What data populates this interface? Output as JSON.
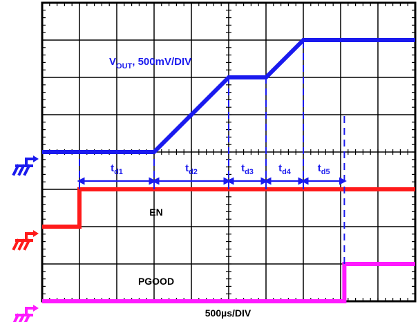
{
  "chart_data": {
    "type": "line",
    "time_scale": "500µs/DIV",
    "x_unit": "div",
    "y_unit": "div",
    "xlim": [
      0,
      10
    ],
    "ylim": [
      0,
      8
    ],
    "grid": true,
    "series": [
      {
        "name": "VOUT",
        "label_main": "V",
        "label_sub": "OUT",
        "label_rest": ", 500mV/DIV",
        "color": "#1a1aee",
        "points": [
          [
            0,
            4.0
          ],
          [
            3.0,
            4.0
          ],
          [
            5.0,
            6.0
          ],
          [
            6.0,
            6.0
          ],
          [
            7.0,
            7.0
          ],
          [
            10,
            7.0
          ]
        ]
      },
      {
        "name": "EN",
        "label": "EN",
        "color": "#ff1a1a",
        "points": [
          [
            0,
            2.0
          ],
          [
            1.0,
            2.0
          ],
          [
            1.0,
            3.0
          ],
          [
            10,
            3.0
          ]
        ]
      },
      {
        "name": "PGOOD",
        "label": "PGOOD",
        "color": "#ff1aff",
        "points": [
          [
            0,
            0.0
          ],
          [
            8.1,
            0.0
          ],
          [
            8.1,
            1.0
          ],
          [
            10,
            1.0
          ]
        ]
      }
    ],
    "markers": [
      {
        "x": 1.0,
        "from_y": 3.0,
        "to_y": 4.0
      },
      {
        "x": 3.0,
        "from_y": 3.0,
        "to_y": 4.0
      },
      {
        "x": 5.0,
        "from_y": 3.0,
        "to_y": 6.0
      },
      {
        "x": 6.0,
        "from_y": 3.0,
        "to_y": 6.0
      },
      {
        "x": 7.0,
        "from_y": 3.0,
        "to_y": 7.0
      },
      {
        "x": 8.1,
        "from_y": 1.0,
        "to_y": 5.0
      }
    ],
    "intervals": [
      {
        "main": "t",
        "sub": "d1",
        "x0": 1.0,
        "x1": 3.0
      },
      {
        "main": "t",
        "sub": "d2",
        "x0": 3.0,
        "x1": 5.0
      },
      {
        "main": "t",
        "sub": "d3",
        "x0": 5.0,
        "x1": 6.0
      },
      {
        "main": "t",
        "sub": "d4",
        "x0": 6.0,
        "x1": 7.0
      },
      {
        "main": "t",
        "sub": "d5",
        "x0": 7.0,
        "x1": 8.1
      }
    ],
    "ground_refs": [
      {
        "channel": "VOUT",
        "level": 4.0,
        "color": "#1a1aee"
      },
      {
        "channel": "EN",
        "level": 2.0,
        "color": "#ff1a1a"
      },
      {
        "channel": "PGOOD",
        "level": 0.0,
        "color": "#ff1aff"
      }
    ]
  }
}
